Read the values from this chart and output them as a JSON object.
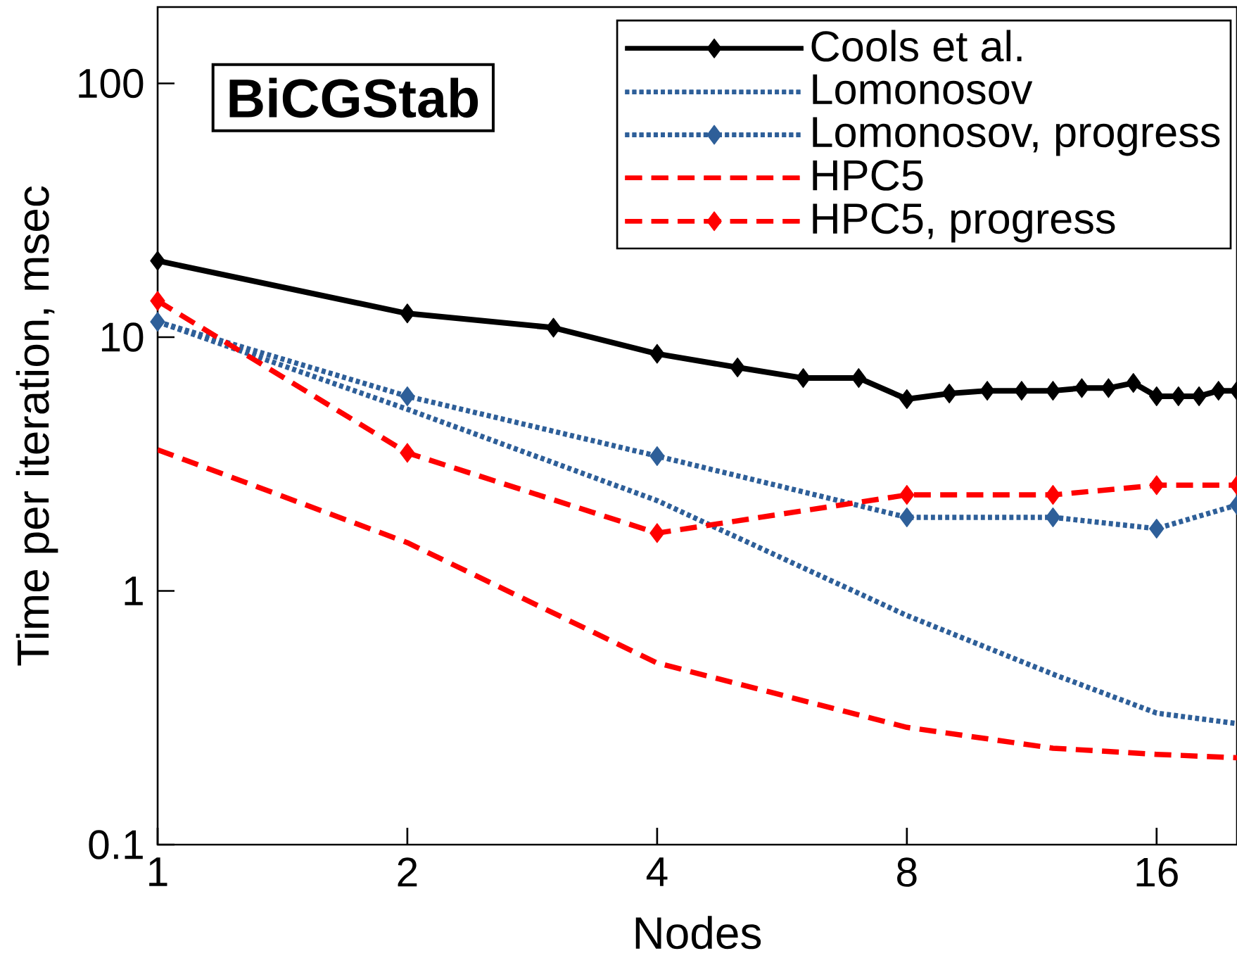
{
  "chart_data": {
    "type": "line",
    "xlabel": "Nodes",
    "ylabel": "Time per iteration, msec",
    "annotations": [
      "BiCGStab"
    ],
    "log": "xy",
    "legend": "top right",
    "xlim": [
      1,
      20
    ],
    "ylim": [
      0.1,
      200
    ],
    "xticks": [
      1,
      2,
      4,
      8,
      16
    ],
    "yticks": [
      0.1,
      1,
      10,
      100
    ],
    "series": [
      {
        "name": "Cools et al.",
        "color": "#000000",
        "line_style": "solid",
        "marker": "diamond",
        "x": [
          1,
          2,
          3,
          4,
          5,
          6,
          7,
          8,
          9,
          10,
          11,
          12,
          13,
          14,
          15,
          16,
          17,
          18,
          19,
          20
        ],
        "values": [
          20,
          12.4,
          10.9,
          8.6,
          7.6,
          6.9,
          6.9,
          5.7,
          6.0,
          6.15,
          6.15,
          6.15,
          6.3,
          6.3,
          6.6,
          5.85,
          5.85,
          5.85,
          6.15,
          6.15
        ]
      },
      {
        "name": "Lomonosov",
        "color": "#2e5f99",
        "line_style": "dotted",
        "marker": "none",
        "x": [
          1,
          2,
          4,
          8,
          12,
          16,
          20
        ],
        "values": [
          11.5,
          5.2,
          2.27,
          0.8,
          0.47,
          0.33,
          0.3
        ]
      },
      {
        "name": "Lomonosov, progress",
        "color": "#2e5f99",
        "line_style": "dotted",
        "marker": "diamond",
        "x": [
          1,
          2,
          4,
          8,
          12,
          16,
          20
        ],
        "values": [
          11.5,
          5.85,
          3.4,
          1.95,
          1.95,
          1.76,
          2.18
        ]
      },
      {
        "name": "HPC5",
        "color": "#ff0000",
        "line_style": "dashed",
        "marker": "none",
        "x": [
          1,
          2,
          4,
          8,
          12,
          16,
          20
        ],
        "values": [
          3.6,
          1.55,
          0.52,
          0.29,
          0.24,
          0.227,
          0.22
        ]
      },
      {
        "name": "HPC5, progress",
        "color": "#ff0000",
        "line_style": "dashed",
        "marker": "diamond",
        "x": [
          1,
          2,
          4,
          8,
          12,
          16,
          20
        ],
        "values": [
          13.9,
          3.5,
          1.69,
          2.39,
          2.39,
          2.61,
          2.61
        ]
      }
    ]
  }
}
